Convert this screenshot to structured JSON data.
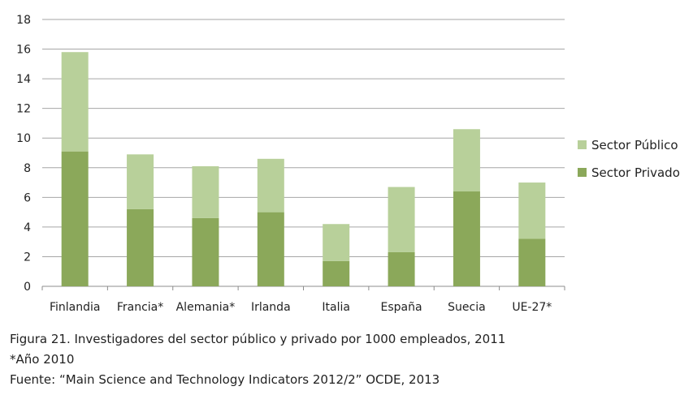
{
  "chart_data": {
    "type": "bar",
    "stacked": true,
    "categories": [
      "Finlandia",
      "Francia*",
      "Alemania*",
      "Irlanda",
      "Italia",
      "España",
      "Suecia",
      "UE-27*"
    ],
    "series": [
      {
        "name": "Sector Privado",
        "values": [
          9.1,
          5.2,
          4.6,
          5.0,
          1.7,
          2.3,
          6.4,
          3.2
        ],
        "color": "#8ba85a"
      },
      {
        "name": "Sector Público",
        "values": [
          6.7,
          3.7,
          3.5,
          3.6,
          2.5,
          4.4,
          4.2,
          3.8
        ],
        "color": "#b8d09a"
      }
    ],
    "ylim": [
      0,
      18
    ],
    "yticks": [
      "0",
      "2",
      "4",
      "6",
      "8",
      "10",
      "12",
      "14",
      "16",
      "18"
    ],
    "grid": true,
    "legend": "right"
  },
  "caption": {
    "line1": "Figura 21. Investigadores del sector público y privado por 1000 empleados, 2011",
    "line2": "*Año 2010",
    "line3": "Fuente: “Main Science and Technology Indicators 2012/2” OCDE, 2013"
  }
}
